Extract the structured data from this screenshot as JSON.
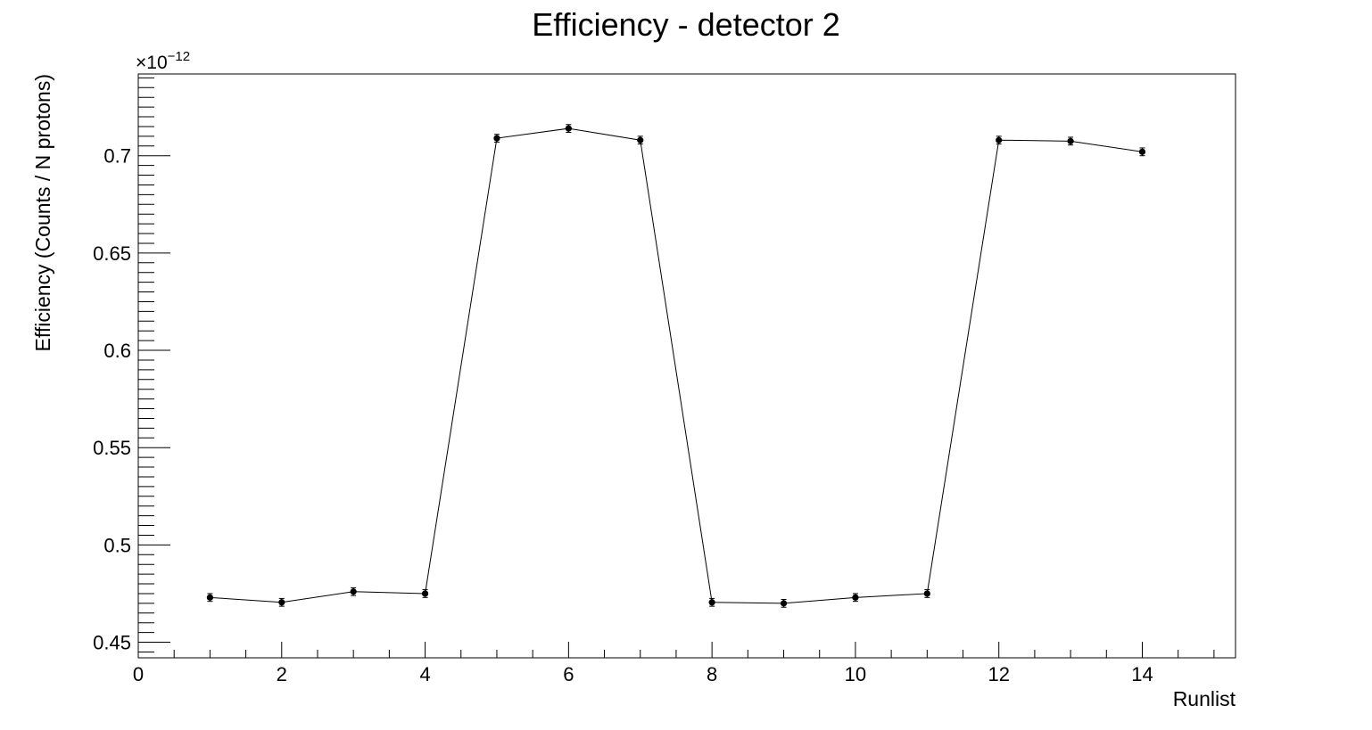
{
  "chart_data": {
    "type": "scatter",
    "title": "Efficiency - detector 2",
    "xlabel": "Runlist",
    "ylabel": "Efficiency (Counts / N protons)",
    "y_exponent_base": "×10",
    "y_exponent_power": "−12",
    "xlim": [
      0,
      15.3
    ],
    "ylim": [
      0.442,
      0.742
    ],
    "x_ticks": [
      0,
      2,
      4,
      6,
      8,
      10,
      12,
      14
    ],
    "x_tick_labels": [
      "0",
      "2",
      "4",
      "6",
      "8",
      "10",
      "12",
      "14"
    ],
    "y_ticks": [
      0.45,
      0.5,
      0.55,
      0.6,
      0.65,
      0.7
    ],
    "y_tick_labels": [
      "0.45",
      "0.5",
      "0.55",
      "0.6",
      "0.65",
      "0.7"
    ],
    "grid": false,
    "line": true,
    "marker": "filled-circle",
    "color": "#000000",
    "series": [
      {
        "x": [
          1,
          2,
          3,
          4,
          5,
          6,
          7,
          8,
          9,
          10,
          11,
          12,
          13,
          14
        ],
        "y": [
          0.473,
          0.4705,
          0.476,
          0.475,
          0.709,
          0.714,
          0.708,
          0.4705,
          0.47,
          0.473,
          0.475,
          0.708,
          0.7075,
          0.702
        ],
        "y_err": [
          0.002,
          0.002,
          0.002,
          0.002,
          0.002,
          0.002,
          0.002,
          0.002,
          0.002,
          0.002,
          0.002,
          0.002,
          0.002,
          0.002
        ]
      }
    ]
  }
}
